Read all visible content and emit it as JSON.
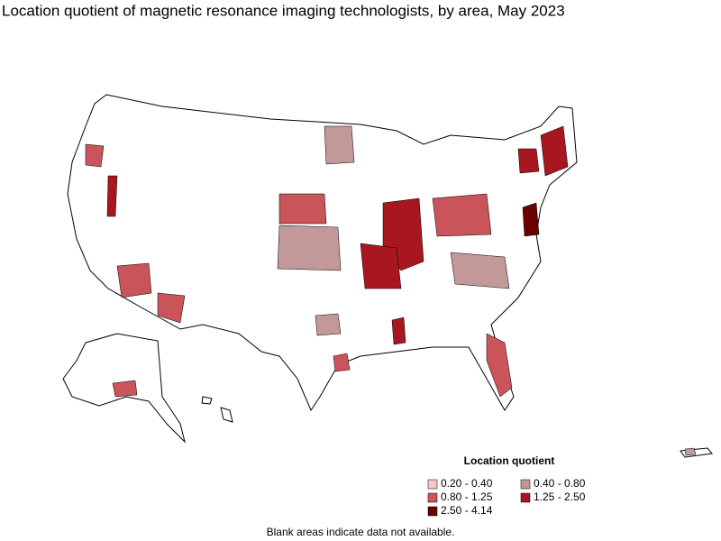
{
  "title": "Location quotient of magnetic resonance imaging technologists, by area, May 2023",
  "legend": {
    "title": "Location quotient",
    "items": [
      {
        "label": "0.20 - 0.40",
        "color": "#f4c8c8"
      },
      {
        "label": "0.40 - 0.80",
        "color": "#c39898"
      },
      {
        "label": "0.80 - 1.25",
        "color": "#c9545a"
      },
      {
        "label": "1.25 - 2.50",
        "color": "#a8161f"
      },
      {
        "label": "2.50 - 4.14",
        "color": "#6a0000"
      }
    ]
  },
  "note": "Blank areas indicate data not available."
}
